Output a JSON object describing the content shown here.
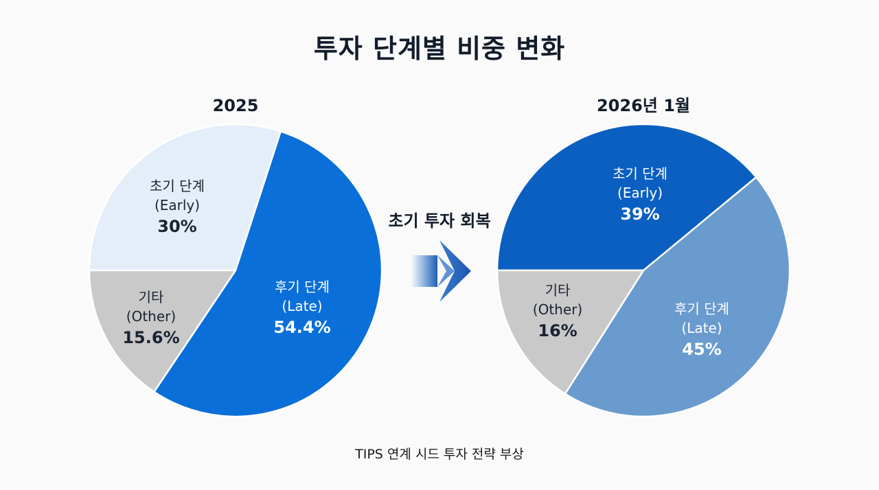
{
  "title": "투자 단계별 비중 변화",
  "transition_label": "초기 투자 회복",
  "footnote": "TIPS 연계 시드 투자 전략 부상",
  "chart_data": [
    {
      "type": "pie",
      "title": "2025",
      "slices": [
        {
          "label": "초기 단계",
          "sublabel": "(Early)",
          "value": 30,
          "display": "30%",
          "color": "#e3eef9",
          "text_color": "#1a2333"
        },
        {
          "label": "후기 단계",
          "sublabel": "(Late)",
          "value": 54.4,
          "display": "54.4%",
          "color": "#0a6fd8",
          "text_color": "#ffffff"
        },
        {
          "label": "기타",
          "sublabel": "(Other)",
          "value": 15.6,
          "display": "15.6%",
          "color": "#c9c9c9",
          "text_color": "#1a2333"
        }
      ]
    },
    {
      "type": "pie",
      "title": "2026년 1월",
      "slices": [
        {
          "label": "초기 단계",
          "sublabel": "(Early)",
          "value": 39,
          "display": "39%",
          "color": "#0b5fc1",
          "text_color": "#ffffff"
        },
        {
          "label": "후기 단계",
          "sublabel": "(Late)",
          "value": 45,
          "display": "45%",
          "color": "#6a9bcf",
          "text_color": "#ffffff"
        },
        {
          "label": "기타",
          "sublabel": "(Other)",
          "value": 16,
          "display": "16%",
          "color": "#c9c9c9",
          "text_color": "#1a2333"
        }
      ]
    }
  ]
}
